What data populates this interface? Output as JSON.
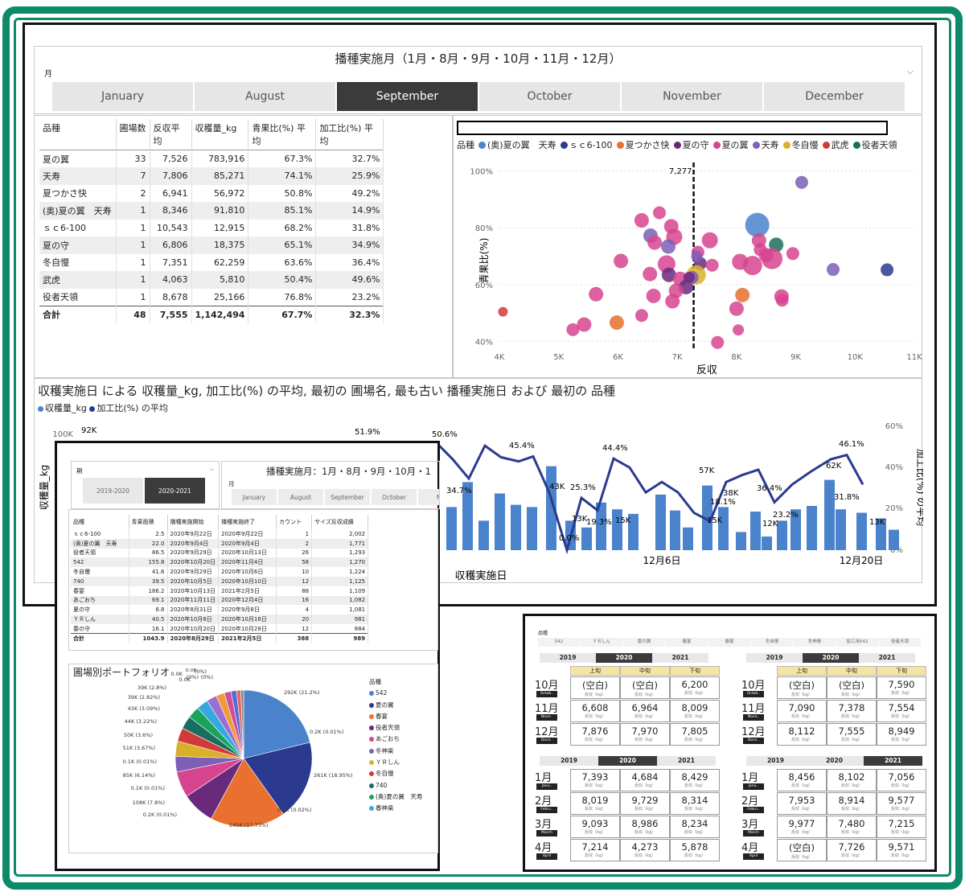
{
  "colors": {
    "frame": "#0d8a6a",
    "selected": "#3b3b3b",
    "bar": "#4a83cc",
    "line": "#2b3a8f"
  },
  "main": {
    "slicer": {
      "title": "播種実施月（1月・8月・9月・10月・11月・12月）",
      "label": "月",
      "months": [
        "January",
        "August",
        "September",
        "October",
        "November",
        "December"
      ],
      "selected": "September"
    },
    "table": {
      "headers": [
        "品種",
        "圃場数",
        "反収平均",
        "収穫量_kg",
        "青果比(%) 平均",
        "加工比(%) 平均"
      ],
      "rows": [
        [
          "夏の翼",
          "33",
          "7,526",
          "783,916",
          "67.3%",
          "32.7%"
        ],
        [
          "天寿",
          "7",
          "7,806",
          "85,271",
          "74.1%",
          "25.9%"
        ],
        [
          "夏つかさ快",
          "2",
          "6,941",
          "56,972",
          "50.8%",
          "49.2%"
        ],
        [
          "(奥)夏の翼　天寿",
          "1",
          "8,346",
          "91,810",
          "85.1%",
          "14.9%"
        ],
        [
          "ｓｃ6-100",
          "1",
          "10,543",
          "12,915",
          "68.2%",
          "31.8%"
        ],
        [
          "夏の守",
          "1",
          "6,806",
          "18,375",
          "65.1%",
          "34.9%"
        ],
        [
          "冬自慢",
          "1",
          "7,351",
          "62,259",
          "63.6%",
          "36.4%"
        ],
        [
          "武虎",
          "1",
          "4,063",
          "5,810",
          "50.4%",
          "49.6%"
        ],
        [
          "役者天領",
          "1",
          "8,678",
          "25,166",
          "76.8%",
          "23.2%"
        ]
      ],
      "total": [
        "合計",
        "48",
        "7,555",
        "1,142,494",
        "67.7%",
        "32.3%"
      ]
    },
    "scatter": {
      "legend_title": "品種",
      "legend": [
        {
          "name": "(奥)夏の翼　天寿",
          "color": "#4a83cc"
        },
        {
          "name": "ｓｃ6-100",
          "color": "#2b3a8f"
        },
        {
          "name": "夏つかさ快",
          "color": "#e9702e"
        },
        {
          "name": "夏の守",
          "color": "#6a2a7c"
        },
        {
          "name": "夏の翼",
          "color": "#d7448f"
        },
        {
          "name": "天寿",
          "color": "#7d5fb6"
        },
        {
          "name": "冬自慢",
          "color": "#d9b02c"
        },
        {
          "name": "武虎",
          "color": "#d23a3a"
        },
        {
          "name": "役者天領",
          "color": "#1b6e5f"
        }
      ],
      "xlabel": "反収",
      "ylabel": "青果比(%)",
      "xticks": [
        "4K",
        "5K",
        "6K",
        "7K",
        "8K",
        "9K",
        "10K",
        "11K"
      ],
      "yticks": [
        "100%",
        "80%",
        "60%",
        "40%"
      ],
      "ref_label": "7,277"
    },
    "line": {
      "title": "収穫実施日 による 収穫量_kg, 加工比(%) の平均, 最初の 圃場名, 最も古い 播種実施日 および 最初の 品種",
      "legend": [
        "収穫量_kg",
        "加工比(%) の平均"
      ],
      "ylabel_left": "収穫量_kg",
      "ylabel_right": "加工比(%) の平均",
      "xlabel": "収穫実施日",
      "yticks_left": [
        "100K"
      ],
      "yticks_right": [
        "60%",
        "40%",
        "20%",
        "0%"
      ],
      "xticks": [
        "12月6日",
        "12月20日"
      ],
      "bar_labels": [
        "92K",
        "43K",
        "13K",
        "57K",
        "38K",
        "12K",
        "62K",
        "15K",
        "15K",
        "13K"
      ],
      "line_labels": [
        "51.9%",
        "50.6%",
        "45.4%",
        "44.4%",
        "46.1%",
        "34.7%",
        "25.3%",
        "19.3%",
        "18.1%",
        "36.4%",
        "23.2%",
        "31.8%",
        "0.0%"
      ]
    }
  },
  "overlay1": {
    "period_label": "期",
    "periods": [
      "2019-2020",
      "2020-2021"
    ],
    "selected_period": "2020-2021",
    "slicer_title": "播種実施月：1月・8月・9月・10月・1",
    "month_label": "月",
    "months": [
      "January",
      "August",
      "September",
      "October",
      "No"
    ],
    "table_headers": [
      "品種",
      "青果面積",
      "播種実施開始",
      "播種実施終了",
      "カウント",
      "サイズ反収成績"
    ],
    "table_rows": [
      [
        "ｓｃ6-100",
        "2.5",
        "2020年9月22日",
        "2020年9月22日",
        "1",
        "2,002"
      ],
      [
        "(奥)夏の翼　天寿",
        "22.0",
        "2020年9月4日",
        "2020年9月4日",
        "2",
        "1,771"
      ],
      [
        "役者天領",
        "86.5",
        "2020年9月29日",
        "2020年10月13日",
        "26",
        "1,293"
      ],
      [
        "542",
        "155.8",
        "2020年10月20日",
        "2020年11月4日",
        "58",
        "1,270"
      ],
      [
        "冬自慢",
        "41.6",
        "2020年9月29日",
        "2020年10月6日",
        "10",
        "1,224"
      ],
      [
        "740",
        "39.5",
        "2020年10月5日",
        "2020年10月10日",
        "12",
        "1,125"
      ],
      [
        "春宴",
        "186.2",
        "2020年10月13日",
        "2021年2月5日",
        "88",
        "1,109"
      ],
      [
        "あごおち",
        "69.1",
        "2020年11月11日",
        "2020年12月4日",
        "16",
        "1,082"
      ],
      [
        "夏の守",
        "8.8",
        "2020年8月31日",
        "2020年9月8日",
        "4",
        "1,081"
      ],
      [
        "ＹＲしん",
        "40.5",
        "2020年10月6日",
        "2020年10月16日",
        "20",
        "981"
      ],
      [
        "春の守",
        "16.1",
        "2020年10月20日",
        "2020年10月28日",
        "12",
        "884"
      ]
    ],
    "table_total": [
      "合計",
      "1043.9",
      "2020年8月29日",
      "2021年2月5日",
      "388",
      "989"
    ],
    "pie_title": "圃場別ポートフォリオ",
    "pie_legend_title": "品種",
    "pie_legend": [
      {
        "name": "542",
        "color": "#4a83cc"
      },
      {
        "name": "夏の翼",
        "color": "#2b3a8f"
      },
      {
        "name": "春宴",
        "color": "#e9702e"
      },
      {
        "name": "役者天領",
        "color": "#6a2a7c"
      },
      {
        "name": "あごおち",
        "color": "#d7448f"
      },
      {
        "name": "冬神楽",
        "color": "#7d5fb6"
      },
      {
        "name": "ＹＲしん",
        "color": "#d9b02c"
      },
      {
        "name": "冬自慢",
        "color": "#d23a3a"
      },
      {
        "name": "740",
        "color": "#1b6e5f"
      },
      {
        "name": "(奥)夏の翼　天寿",
        "color": "#1aa35a"
      },
      {
        "name": "春神楽",
        "color": "#36a8e0"
      }
    ],
    "pie_labels": [
      "292K (21.2%)",
      "0.2K (0.01%)",
      "261K (18.95%)",
      "0.2K (0.02%)",
      "245K (17.73%)",
      "0.2K (0.01%)",
      "108K (7.8%)",
      "0.1K (0.01%)",
      "85K (6.14%)",
      "0.1K (0.01%)",
      "51K (3.67%)",
      "50K (3.6%)",
      "44K (3.22%)",
      "43K (3.09%)",
      "39K (2.82%)",
      "39K (2.8%)",
      "0.0K",
      "0.0K",
      "0.0K",
      "(0%)",
      "(0%)",
      "(0%)"
    ]
  },
  "overlay2": {
    "top_label": "品種",
    "top_items": [
      "542",
      "ＹＲしん",
      "夏の翼",
      "春宴",
      "春宴",
      "冬自慢",
      "冬神楽",
      "加工用542",
      "役者天領"
    ],
    "years": [
      "2019",
      "2020",
      "2021"
    ],
    "periods": [
      "上旬",
      "中旬",
      "下旬"
    ],
    "unit": "反収（kg）",
    "left_top": {
      "selected_year": "2020",
      "rows": [
        {
          "month": "10月",
          "tag": "Octob..",
          "values": [
            "(空白)",
            "(空白)",
            "6,200"
          ]
        },
        {
          "month": "11月",
          "tag": "Nove..",
          "values": [
            "6,608",
            "6,964",
            "8,009"
          ]
        },
        {
          "month": "12月",
          "tag": "Dece..",
          "values": [
            "7,876",
            "7,970",
            "7,805"
          ]
        }
      ]
    },
    "right_top": {
      "selected_year": "2020",
      "rows": [
        {
          "month": "10月",
          "tag": "Octob..",
          "values": [
            "(空白)",
            "(空白)",
            "7,590"
          ]
        },
        {
          "month": "11月",
          "tag": "Nove..",
          "values": [
            "7,090",
            "7,378",
            "7,554"
          ]
        },
        {
          "month": "12月",
          "tag": "Dece..",
          "values": [
            "8,112",
            "7,555",
            "8,949"
          ]
        }
      ]
    },
    "left_bottom": {
      "selected_year": "2020",
      "rows": [
        {
          "month": "1月",
          "tag": "Janu..",
          "values": [
            "7,393",
            "4,684",
            "8,429"
          ]
        },
        {
          "month": "2月",
          "tag": "Febru..",
          "values": [
            "8,019",
            "9,729",
            "8,314"
          ]
        },
        {
          "month": "3月",
          "tag": "March",
          "values": [
            "9,093",
            "8,986",
            "8,234"
          ]
        },
        {
          "month": "4月",
          "tag": "April",
          "values": [
            "7,214",
            "4,273",
            "5,878"
          ]
        }
      ]
    },
    "right_bottom": {
      "selected_year": "2021",
      "rows": [
        {
          "month": "1月",
          "tag": "Janu..",
          "values": [
            "8,456",
            "8,102",
            "7,056"
          ]
        },
        {
          "month": "2月",
          "tag": "Febru..",
          "values": [
            "7,953",
            "8,914",
            "9,577"
          ]
        },
        {
          "month": "3月",
          "tag": "March",
          "values": [
            "9,977",
            "7,480",
            "7,215"
          ]
        },
        {
          "month": "4月",
          "tag": "April",
          "values": [
            "(空白)",
            "7,726",
            "9,571"
          ]
        }
      ]
    }
  }
}
